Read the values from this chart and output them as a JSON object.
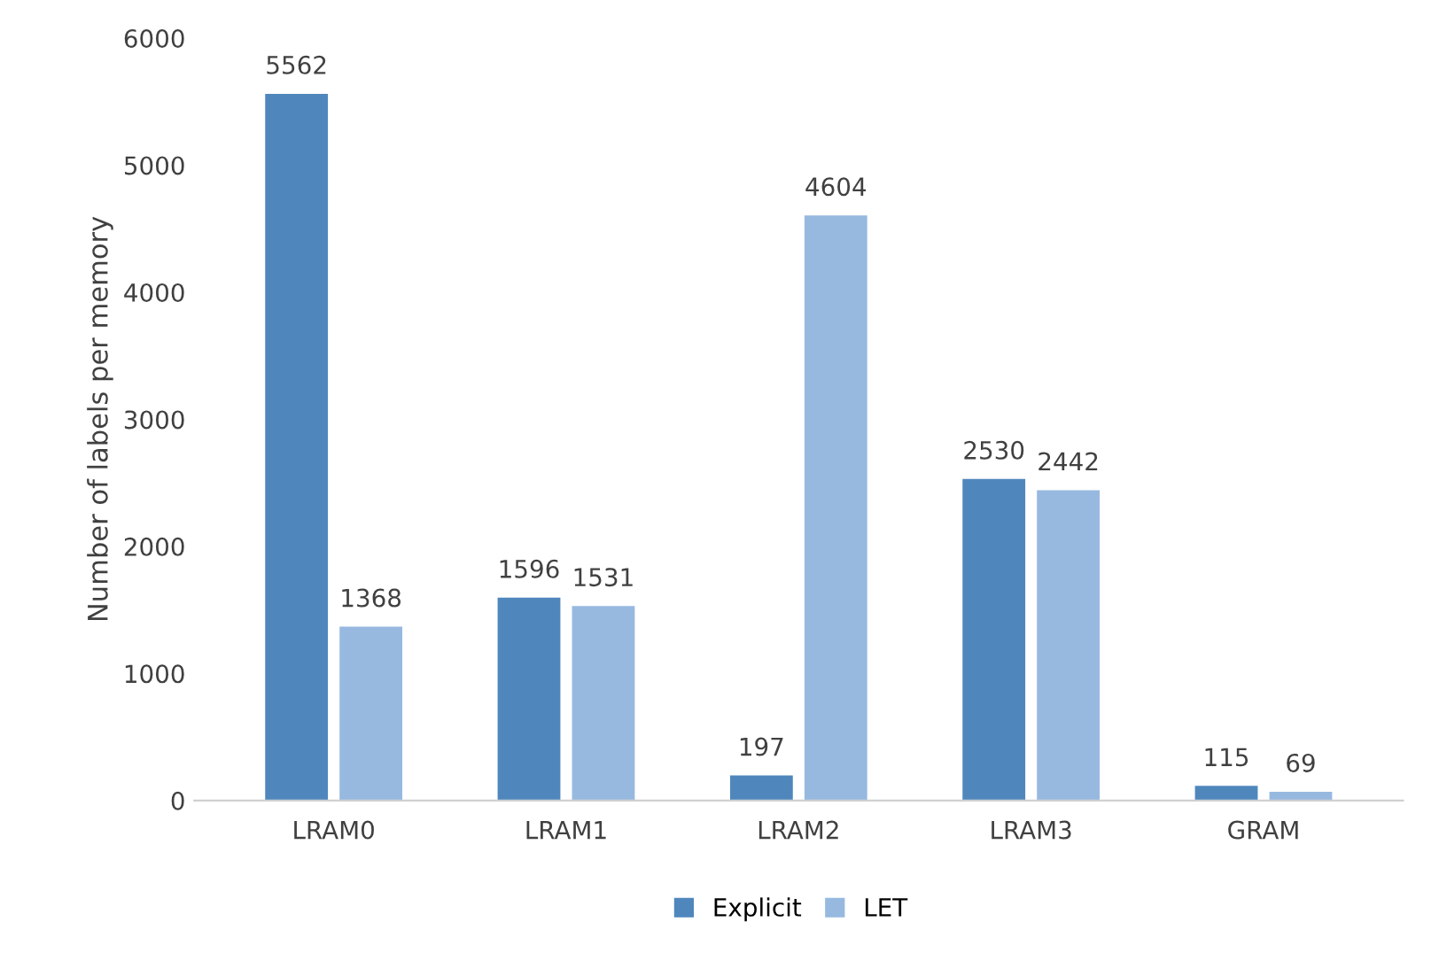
{
  "chart_data": {
    "type": "bar",
    "ylabel": "Number of labels per memory",
    "categories": [
      "LRAM0",
      "LRAM1",
      "LRAM2",
      "LRAM3",
      "GRAM"
    ],
    "series": [
      {
        "name": "Explicit",
        "color": "#4f87bd",
        "values": [
          5562,
          1596,
          197,
          2530,
          115
        ]
      },
      {
        "name": "LET",
        "color": "#97b9e0",
        "values": [
          1368,
          1531,
          4604,
          2442,
          69
        ]
      }
    ],
    "ylim": [
      0,
      6000
    ],
    "yticks": [
      0,
      1000,
      2000,
      3000,
      4000,
      5000,
      6000
    ],
    "grid": false,
    "legend": "bottom",
    "data_labels": true
  }
}
